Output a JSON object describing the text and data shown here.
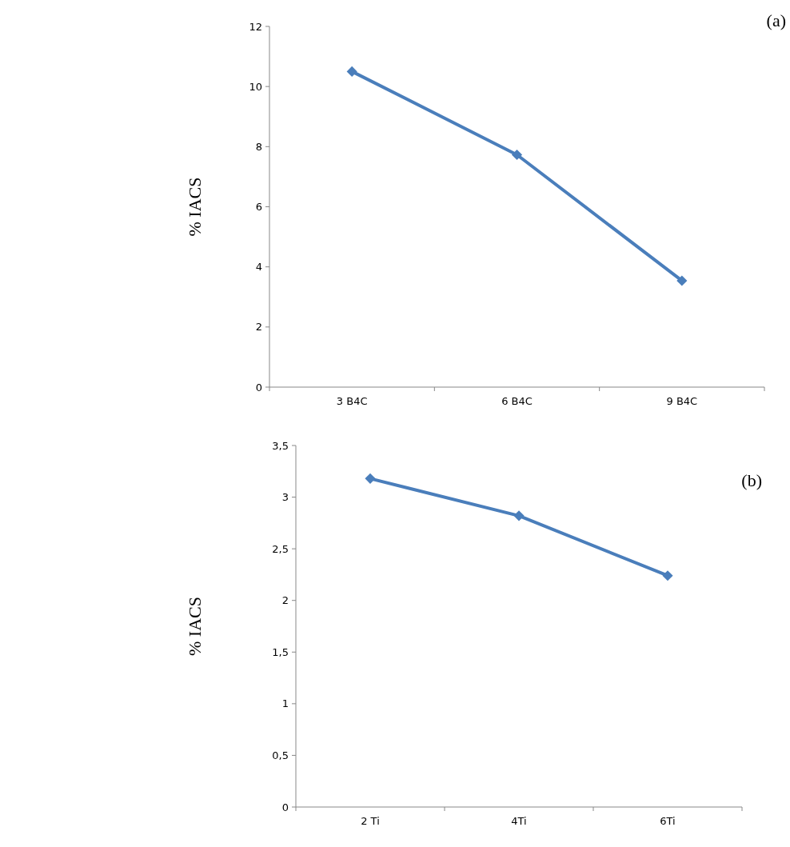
{
  "chart_data": [
    {
      "type": "line",
      "title": "(a)",
      "ylabel": "% IACS",
      "categories": [
        "3 B4C",
        "6 B4C",
        "9 B4C"
      ],
      "series": [
        {
          "color": "#4a7ebb",
          "values": [
            10.5,
            7.73,
            3.54
          ]
        }
      ],
      "ylim": [
        0,
        12
      ],
      "yticks": [
        0,
        2,
        4,
        6,
        8,
        10,
        12
      ],
      "grid": false,
      "marker": "diamond",
      "line_style": "solid"
    },
    {
      "type": "line",
      "title": "(b)",
      "ylabel": "% IACS",
      "categories": [
        "2 Ti",
        "4Ti",
        "6Ti"
      ],
      "series": [
        {
          "color": "#4a7ebb",
          "values": [
            3.18,
            2.82,
            2.24
          ]
        }
      ],
      "ylim": [
        0,
        3.5
      ],
      "yticks": [
        0,
        {
          "value": 0.5,
          "label": "0,5"
        },
        1,
        {
          "value": 1.5,
          "label": "1,5"
        },
        2,
        {
          "value": 2.5,
          "label": "2,5"
        },
        3,
        {
          "value": 3.5,
          "label": "3,5"
        }
      ],
      "grid": false,
      "marker": "diamond",
      "line_style": "solid"
    }
  ]
}
